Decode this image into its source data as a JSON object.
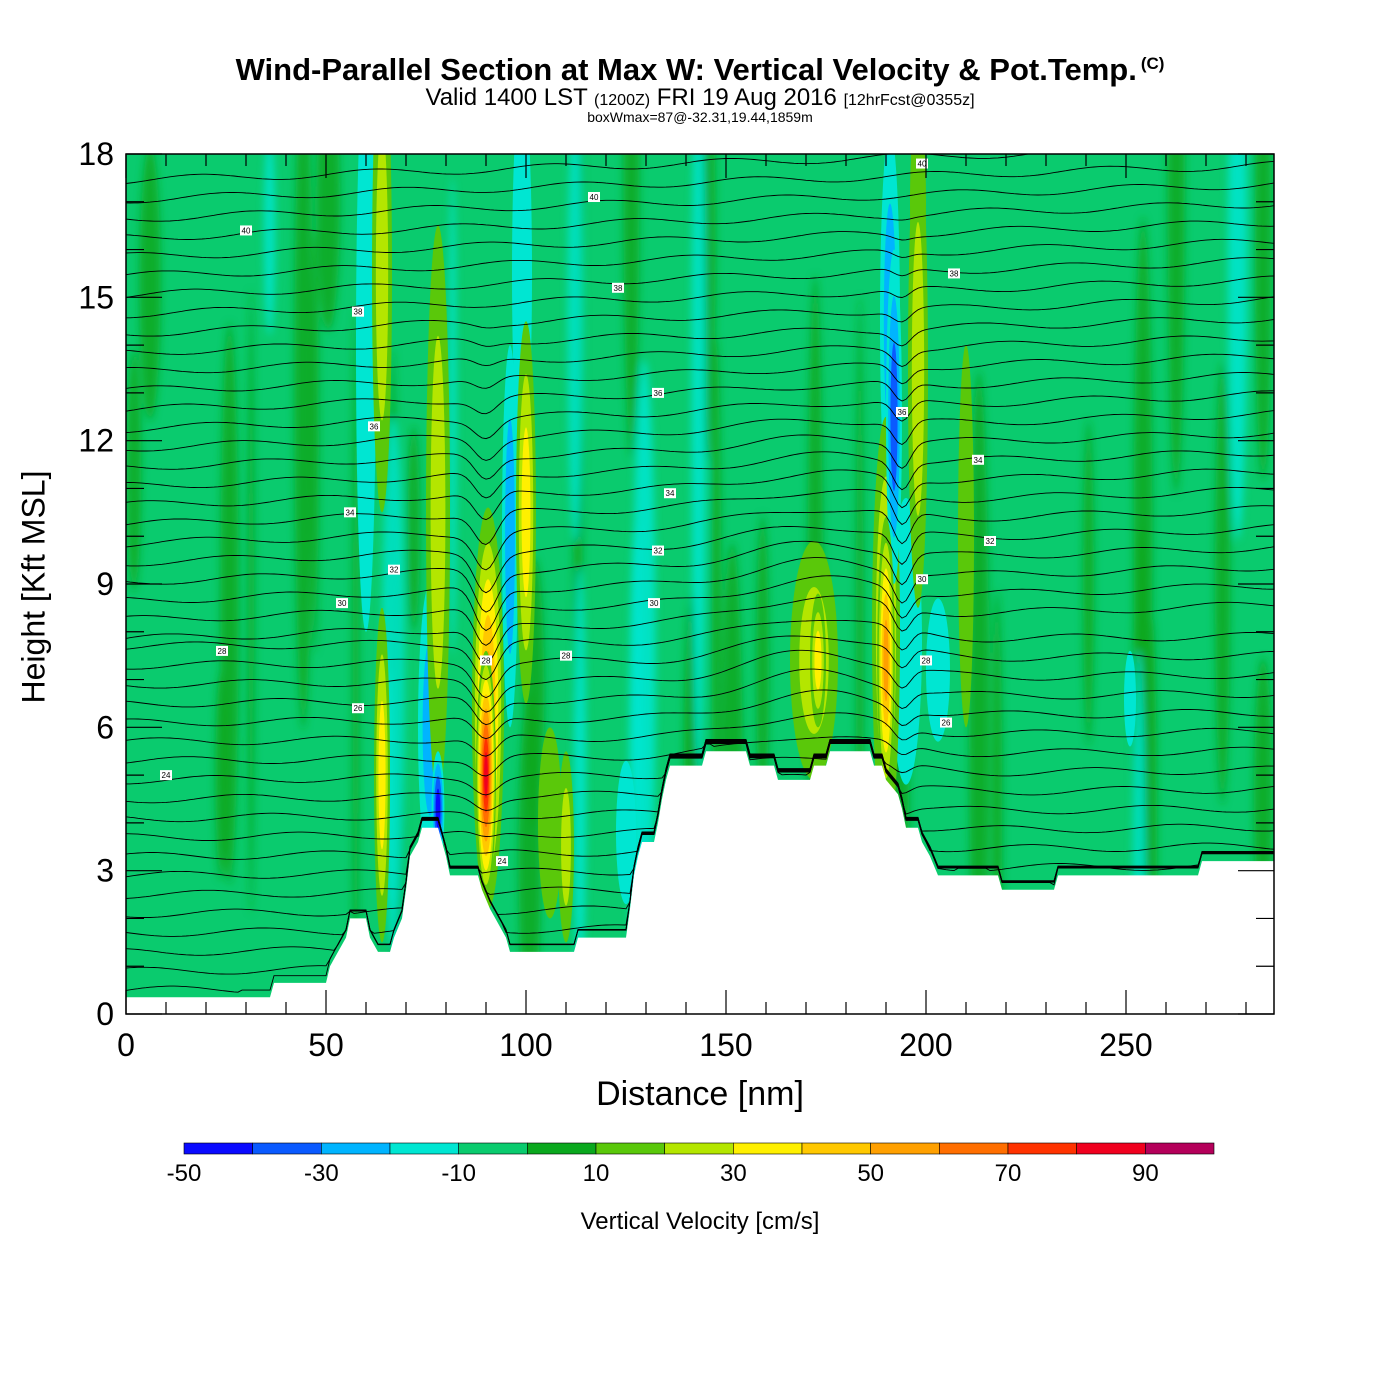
{
  "title": "Wind-Parallel Section at Max W: Vertical Velocity & Pot.Temp.",
  "copyright_mark": "(C)",
  "subtitle": {
    "valid": "Valid 1400 LST",
    "utc": "(1200Z)",
    "date": "FRI 19 Aug 2016",
    "forecast": "[12hrFcst@0355z]"
  },
  "box_info": "boxWmax=87@-32.31,19.44,1859m",
  "colors": {
    "background_field": "#0acb6e",
    "terrain_mask": "#ffffff"
  },
  "chart_data": {
    "type": "heatmap",
    "title": "Wind-Parallel Section at Max W: Vertical Velocity & Pot.Temp.",
    "xlabel": "Distance [nm]",
    "ylabel": "Height [Kft MSL]",
    "xlim": [
      0,
      287
    ],
    "ylim": [
      0,
      18
    ],
    "x_ticks": [
      0,
      50,
      100,
      150,
      200,
      250
    ],
    "y_ticks": [
      0,
      3,
      6,
      9,
      12,
      15,
      18
    ],
    "colorbar": {
      "label": "Vertical Velocity [cm/s]",
      "bounds": [
        -50,
        -40,
        -30,
        -20,
        -10,
        0,
        10,
        20,
        30,
        40,
        50,
        60,
        70,
        80,
        90,
        100
      ],
      "colors": [
        "#0a0aff",
        "#0a5aff",
        "#00b4ff",
        "#00e6d2",
        "#0acb6e",
        "#0aa81e",
        "#5ac80a",
        "#b4e600",
        "#fff000",
        "#ffc800",
        "#ffa000",
        "#ff6e00",
        "#ff3200",
        "#f0001e",
        "#b4005a"
      ],
      "tick_labels": [
        "-50",
        "-30",
        "-10",
        "10",
        "30",
        "50",
        "70",
        "90"
      ],
      "tick_values": [
        -50,
        -30,
        -10,
        10,
        30,
        50,
        70,
        90
      ]
    },
    "terrain_kft": [
      [
        0,
        0.35
      ],
      [
        36,
        0.35
      ],
      [
        37,
        0.65
      ],
      [
        50,
        0.65
      ],
      [
        51,
        1.0
      ],
      [
        53,
        1.3
      ],
      [
        55,
        1.6
      ],
      [
        56,
        2.0
      ],
      [
        60,
        2.0
      ],
      [
        61,
        1.6
      ],
      [
        63,
        1.3
      ],
      [
        66,
        1.3
      ],
      [
        67,
        1.6
      ],
      [
        69,
        2.0
      ],
      [
        70,
        2.6
      ],
      [
        71,
        3.3
      ],
      [
        73,
        3.6
      ],
      [
        74,
        3.9
      ],
      [
        78,
        3.9
      ],
      [
        79,
        3.6
      ],
      [
        80,
        3.3
      ],
      [
        81,
        2.9
      ],
      [
        88,
        2.9
      ],
      [
        89,
        2.6
      ],
      [
        91,
        2.2
      ],
      [
        93,
        1.9
      ],
      [
        95,
        1.6
      ],
      [
        96,
        1.3
      ],
      [
        112,
        1.3
      ],
      [
        113,
        1.6
      ],
      [
        125,
        1.6
      ],
      [
        126,
        2.2
      ],
      [
        127,
        2.9
      ],
      [
        128,
        3.3
      ],
      [
        129,
        3.6
      ],
      [
        132,
        3.6
      ],
      [
        133,
        4.0
      ],
      [
        134,
        4.5
      ],
      [
        135,
        4.9
      ],
      [
        136,
        5.2
      ],
      [
        144,
        5.2
      ],
      [
        145,
        5.5
      ],
      [
        155,
        5.5
      ],
      [
        156,
        5.2
      ],
      [
        162,
        5.2
      ],
      [
        163,
        4.9
      ],
      [
        171,
        4.9
      ],
      [
        172,
        5.2
      ],
      [
        175,
        5.2
      ],
      [
        176,
        5.5
      ],
      [
        186,
        5.5
      ],
      [
        187,
        5.2
      ],
      [
        189,
        5.2
      ],
      [
        190,
        4.9
      ],
      [
        193,
        4.6
      ],
      [
        194,
        4.3
      ],
      [
        195,
        3.9
      ],
      [
        198,
        3.9
      ],
      [
        199,
        3.6
      ],
      [
        201,
        3.3
      ],
      [
        203,
        2.9
      ],
      [
        218,
        2.9
      ],
      [
        219,
        2.6
      ],
      [
        232,
        2.6
      ],
      [
        233,
        2.9
      ],
      [
        268,
        2.9
      ],
      [
        269,
        3.2
      ],
      [
        287,
        3.2
      ]
    ],
    "features": [
      {
        "x": 90,
        "z": 5.0,
        "width_nm": 2.5,
        "height_kft": 2.6,
        "w": 87
      },
      {
        "x": 90.5,
        "z": 6.4,
        "width_nm": 4,
        "height_kft": 4.2,
        "w": 52
      },
      {
        "x": 78,
        "z": 4.3,
        "width_nm": 1.6,
        "height_kft": 1.2,
        "w": -44
      },
      {
        "x": 76,
        "z": 6.0,
        "width_nm": 3,
        "height_kft": 3.0,
        "w": -20
      },
      {
        "x": 64,
        "z": 5.0,
        "width_nm": 2,
        "height_kft": 3.5,
        "w": 35
      },
      {
        "x": 60,
        "z": 14.0,
        "width_nm": 2.5,
        "height_kft": 6,
        "w": -12
      },
      {
        "x": 78,
        "z": 10.5,
        "width_nm": 3,
        "height_kft": 6,
        "w": 22
      },
      {
        "x": 96,
        "z": 10.0,
        "width_nm": 2,
        "height_kft": 4,
        "w": -22
      },
      {
        "x": 100,
        "z": 10.5,
        "width_nm": 2.5,
        "height_kft": 4,
        "w": 38
      },
      {
        "x": 99,
        "z": 15.5,
        "width_nm": 2.5,
        "height_kft": 4,
        "w": -15
      },
      {
        "x": 64,
        "z": 15.5,
        "width_nm": 2.5,
        "height_kft": 5,
        "w": 22
      },
      {
        "x": 106,
        "z": 4.0,
        "width_nm": 3,
        "height_kft": 2,
        "w": 15
      },
      {
        "x": 110,
        "z": 3.5,
        "width_nm": 2,
        "height_kft": 2,
        "w": 28
      },
      {
        "x": 125,
        "z": 3.8,
        "width_nm": 2.5,
        "height_kft": 1.5,
        "w": -15
      },
      {
        "x": 172,
        "z": 7.4,
        "width_nm": 6,
        "height_kft": 2.5,
        "w": 22
      },
      {
        "x": 173,
        "z": 7.4,
        "width_nm": 2,
        "height_kft": 1.4,
        "w": 32
      },
      {
        "x": 190,
        "z": 7.4,
        "width_nm": 2.2,
        "height_kft": 3.0,
        "w": 55
      },
      {
        "x": 190,
        "z": 8.0,
        "width_nm": 3.5,
        "height_kft": 4.5,
        "w": 32
      },
      {
        "x": 195,
        "z": 7.8,
        "width_nm": 4,
        "height_kft": 3.0,
        "w": -17
      },
      {
        "x": 203,
        "z": 7.2,
        "width_nm": 3,
        "height_kft": 1.5,
        "w": -15
      },
      {
        "x": 192,
        "z": 12.5,
        "width_nm": 2,
        "height_kft": 3.5,
        "w": -35
      },
      {
        "x": 191,
        "z": 14.5,
        "width_nm": 2.5,
        "height_kft": 4,
        "w": -22
      },
      {
        "x": 198,
        "z": 13.5,
        "width_nm": 2.5,
        "height_kft": 5,
        "w": 26
      },
      {
        "x": 198,
        "z": 17.0,
        "width_nm": 2,
        "height_kft": 2,
        "w": 22
      },
      {
        "x": 251,
        "z": 6.6,
        "width_nm": 1.5,
        "height_kft": 1,
        "w": -14
      },
      {
        "x": 210,
        "z": 10.0,
        "width_nm": 2,
        "height_kft": 4,
        "w": 15
      }
    ],
    "isentropes": [
      {
        "label": "24",
        "base": 1.9,
        "lx": 10,
        "ly": 5.0
      },
      {
        "label": "26",
        "base": 2.9,
        "lx": 58,
        "ly": 6.4
      },
      {
        "label": "28",
        "base": 4.3,
        "lx": 24,
        "ly": 7.6
      },
      {
        "label": "30",
        "base": 5.5,
        "lx": 54,
        "ly": 8.6
      },
      {
        "label": "32",
        "base": 6.6,
        "lx": 67,
        "ly": 9.3
      },
      {
        "label": "34",
        "base": 7.9,
        "lx": 56,
        "ly": 10.5
      },
      {
        "label": "36",
        "base": 9.6,
        "lx": 62,
        "ly": 12.3
      },
      {
        "label": "38",
        "base": 11.8,
        "lx": 123,
        "ly": 15.2
      },
      {
        "label": "40",
        "base": 14.6,
        "lx": 30,
        "ly": 16.4
      }
    ],
    "contour_labels": [
      {
        "label": "40",
        "x": 117,
        "y": 17.1
      },
      {
        "label": "40",
        "x": 199,
        "y": 17.8
      },
      {
        "label": "38",
        "x": 207,
        "y": 15.5
      },
      {
        "label": "38",
        "x": 58,
        "y": 14.7
      },
      {
        "label": "36",
        "x": 194,
        "y": 12.6
      },
      {
        "label": "36",
        "x": 133,
        "y": 13.0
      },
      {
        "label": "34",
        "x": 136,
        "y": 10.9
      },
      {
        "label": "34",
        "x": 213,
        "y": 11.6
      },
      {
        "label": "32",
        "x": 133,
        "y": 9.7
      },
      {
        "label": "32",
        "x": 216,
        "y": 9.9
      },
      {
        "label": "30",
        "x": 132,
        "y": 8.6
      },
      {
        "label": "30",
        "x": 199,
        "y": 9.1
      },
      {
        "label": "28",
        "x": 110,
        "y": 7.5
      },
      {
        "label": "28",
        "x": 90,
        "y": 7.4
      },
      {
        "label": "28",
        "x": 200,
        "y": 7.4
      },
      {
        "label": "26",
        "x": 205,
        "y": 6.1
      },
      {
        "label": "24",
        "x": 94,
        "y": 3.2
      }
    ]
  }
}
